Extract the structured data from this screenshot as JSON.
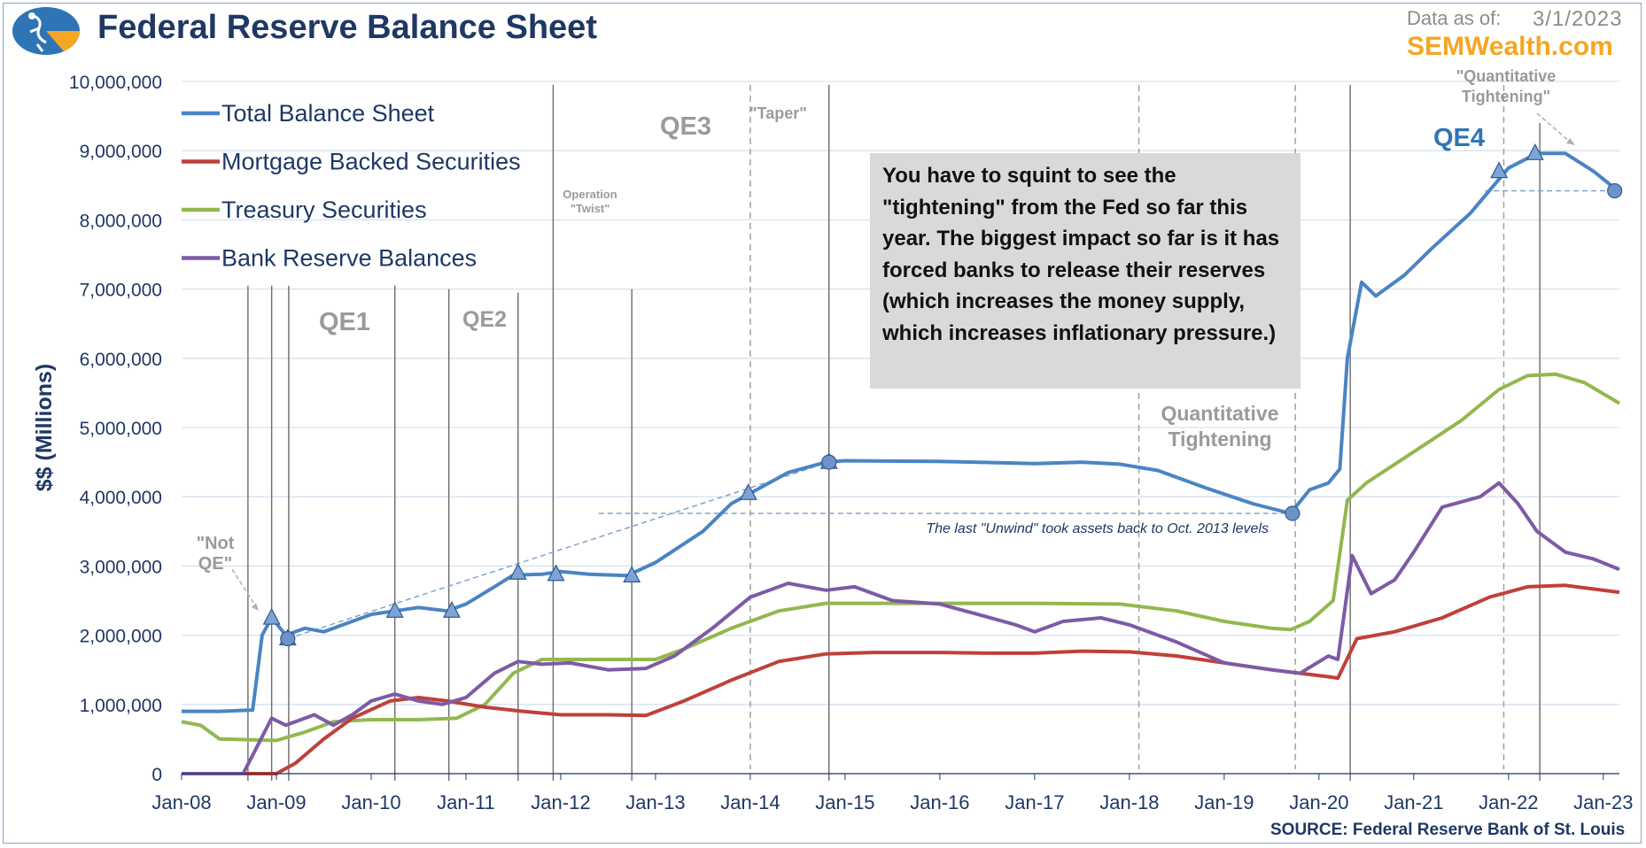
{
  "header": {
    "title": "Federal Reserve Balance Sheet",
    "as_of_label": "Data as of:",
    "as_of_date": "3/1/2023",
    "brand": "SEMWealth.com",
    "logo_icon": "sem-logo-icon"
  },
  "source": "SOURCE:  Federal Reserve Bank of St. Louis",
  "callout": "You have to squint to see the \"tightening\" from the Fed so far this year. The biggest impact so far is it has forced banks to release their reserves (which increases the money supply, which increases inflationary pressure.)",
  "colors": {
    "total": "#4a84c4",
    "mbs": "#c0403a",
    "treasury": "#92b84e",
    "reserves": "#7d5aa6",
    "axis_text": "#1f3864"
  },
  "chart_data": {
    "type": "line",
    "xlabel": "",
    "ylabel": "$$ (Millions)",
    "x_ticks": [
      "Jan-08",
      "Jan-09",
      "Jan-10",
      "Jan-11",
      "Jan-12",
      "Jan-13",
      "Jan-14",
      "Jan-15",
      "Jan-16",
      "Jan-17",
      "Jan-18",
      "Jan-19",
      "Jan-20",
      "Jan-21",
      "Jan-22",
      "Jan-23"
    ],
    "y_ticks": [
      0,
      1000000,
      2000000,
      3000000,
      4000000,
      5000000,
      6000000,
      7000000,
      8000000,
      9000000,
      10000000
    ],
    "ylim": [
      0,
      10000000
    ],
    "xlim": [
      2008.0,
      2023.17
    ],
    "grid": true,
    "legend_position": "top-left",
    "series": [
      {
        "name": "Total Balance Sheet",
        "key": "total",
        "points": [
          [
            2008.0,
            900000
          ],
          [
            2008.4,
            900000
          ],
          [
            2008.75,
            920000
          ],
          [
            2008.85,
            2000000
          ],
          [
            2008.95,
            2250000
          ],
          [
            2009.1,
            2000000
          ],
          [
            2009.3,
            2100000
          ],
          [
            2009.5,
            2050000
          ],
          [
            2009.8,
            2200000
          ],
          [
            2010.0,
            2300000
          ],
          [
            2010.25,
            2350000
          ],
          [
            2010.5,
            2400000
          ],
          [
            2010.8,
            2350000
          ],
          [
            2011.0,
            2450000
          ],
          [
            2011.3,
            2700000
          ],
          [
            2011.5,
            2870000
          ],
          [
            2011.8,
            2880000
          ],
          [
            2012.0,
            2920000
          ],
          [
            2012.3,
            2880000
          ],
          [
            2012.7,
            2860000
          ],
          [
            2013.0,
            3050000
          ],
          [
            2013.5,
            3500000
          ],
          [
            2013.8,
            3900000
          ],
          [
            2014.0,
            4050000
          ],
          [
            2014.4,
            4350000
          ],
          [
            2014.8,
            4500000
          ],
          [
            2015.0,
            4520000
          ],
          [
            2016.0,
            4510000
          ],
          [
            2017.0,
            4480000
          ],
          [
            2017.5,
            4500000
          ],
          [
            2017.9,
            4470000
          ],
          [
            2018.3,
            4380000
          ],
          [
            2018.8,
            4130000
          ],
          [
            2019.3,
            3900000
          ],
          [
            2019.7,
            3760000
          ],
          [
            2019.9,
            4100000
          ],
          [
            2020.1,
            4200000
          ],
          [
            2020.22,
            4400000
          ],
          [
            2020.3,
            6000000
          ],
          [
            2020.45,
            7100000
          ],
          [
            2020.6,
            6900000
          ],
          [
            2020.9,
            7200000
          ],
          [
            2021.2,
            7600000
          ],
          [
            2021.6,
            8100000
          ],
          [
            2022.0,
            8750000
          ],
          [
            2022.3,
            8960000
          ],
          [
            2022.6,
            8960000
          ],
          [
            2022.9,
            8700000
          ],
          [
            2023.17,
            8400000
          ]
        ]
      },
      {
        "name": "Mortgage Backed Securities",
        "key": "mbs",
        "points": [
          [
            2008.0,
            0
          ],
          [
            2009.0,
            0
          ],
          [
            2009.2,
            150000
          ],
          [
            2009.5,
            500000
          ],
          [
            2009.8,
            800000
          ],
          [
            2010.2,
            1050000
          ],
          [
            2010.5,
            1100000
          ],
          [
            2010.8,
            1050000
          ],
          [
            2011.2,
            960000
          ],
          [
            2011.6,
            900000
          ],
          [
            2012.0,
            850000
          ],
          [
            2012.5,
            850000
          ],
          [
            2012.9,
            840000
          ],
          [
            2013.3,
            1050000
          ],
          [
            2013.8,
            1350000
          ],
          [
            2014.3,
            1620000
          ],
          [
            2014.8,
            1730000
          ],
          [
            2015.3,
            1750000
          ],
          [
            2016.0,
            1750000
          ],
          [
            2016.5,
            1740000
          ],
          [
            2017.0,
            1740000
          ],
          [
            2017.5,
            1770000
          ],
          [
            2018.0,
            1760000
          ],
          [
            2018.5,
            1700000
          ],
          [
            2019.0,
            1600000
          ],
          [
            2019.5,
            1500000
          ],
          [
            2020.1,
            1400000
          ],
          [
            2020.2,
            1380000
          ],
          [
            2020.4,
            1950000
          ],
          [
            2020.8,
            2050000
          ],
          [
            2021.3,
            2250000
          ],
          [
            2021.8,
            2550000
          ],
          [
            2022.2,
            2700000
          ],
          [
            2022.6,
            2720000
          ],
          [
            2023.17,
            2620000
          ]
        ]
      },
      {
        "name": "Treasury Securities",
        "key": "treasury",
        "points": [
          [
            2008.0,
            750000
          ],
          [
            2008.2,
            700000
          ],
          [
            2008.4,
            500000
          ],
          [
            2009.0,
            480000
          ],
          [
            2009.3,
            600000
          ],
          [
            2009.6,
            750000
          ],
          [
            2010.0,
            780000
          ],
          [
            2010.5,
            780000
          ],
          [
            2010.9,
            800000
          ],
          [
            2011.2,
            1000000
          ],
          [
            2011.5,
            1450000
          ],
          [
            2011.8,
            1650000
          ],
          [
            2012.3,
            1650000
          ],
          [
            2012.8,
            1650000
          ],
          [
            2013.0,
            1650000
          ],
          [
            2013.3,
            1800000
          ],
          [
            2013.8,
            2100000
          ],
          [
            2014.3,
            2350000
          ],
          [
            2014.8,
            2460000
          ],
          [
            2015.0,
            2460000
          ],
          [
            2017.0,
            2460000
          ],
          [
            2017.9,
            2450000
          ],
          [
            2018.5,
            2350000
          ],
          [
            2019.0,
            2200000
          ],
          [
            2019.5,
            2100000
          ],
          [
            2019.7,
            2080000
          ],
          [
            2019.9,
            2200000
          ],
          [
            2020.15,
            2500000
          ],
          [
            2020.3,
            3950000
          ],
          [
            2020.5,
            4200000
          ],
          [
            2021.0,
            4650000
          ],
          [
            2021.5,
            5100000
          ],
          [
            2021.9,
            5550000
          ],
          [
            2022.2,
            5750000
          ],
          [
            2022.5,
            5770000
          ],
          [
            2022.8,
            5650000
          ],
          [
            2023.17,
            5350000
          ]
        ]
      },
      {
        "name": "Bank Reserve Balances",
        "key": "reserves",
        "points": [
          [
            2008.0,
            0
          ],
          [
            2008.65,
            0
          ],
          [
            2008.8,
            400000
          ],
          [
            2008.95,
            800000
          ],
          [
            2009.1,
            700000
          ],
          [
            2009.4,
            850000
          ],
          [
            2009.6,
            700000
          ],
          [
            2009.8,
            850000
          ],
          [
            2010.0,
            1050000
          ],
          [
            2010.25,
            1150000
          ],
          [
            2010.5,
            1050000
          ],
          [
            2010.75,
            1000000
          ],
          [
            2011.0,
            1100000
          ],
          [
            2011.3,
            1450000
          ],
          [
            2011.55,
            1620000
          ],
          [
            2011.8,
            1580000
          ],
          [
            2012.1,
            1600000
          ],
          [
            2012.5,
            1500000
          ],
          [
            2012.9,
            1520000
          ],
          [
            2013.2,
            1700000
          ],
          [
            2013.6,
            2100000
          ],
          [
            2014.0,
            2550000
          ],
          [
            2014.4,
            2750000
          ],
          [
            2014.8,
            2650000
          ],
          [
            2015.1,
            2700000
          ],
          [
            2015.5,
            2500000
          ],
          [
            2016.0,
            2450000
          ],
          [
            2016.4,
            2300000
          ],
          [
            2016.8,
            2150000
          ],
          [
            2017.0,
            2050000
          ],
          [
            2017.3,
            2200000
          ],
          [
            2017.7,
            2250000
          ],
          [
            2018.0,
            2150000
          ],
          [
            2018.5,
            1900000
          ],
          [
            2019.0,
            1600000
          ],
          [
            2019.5,
            1500000
          ],
          [
            2019.8,
            1450000
          ],
          [
            2020.1,
            1700000
          ],
          [
            2020.2,
            1650000
          ],
          [
            2020.35,
            3150000
          ],
          [
            2020.55,
            2600000
          ],
          [
            2020.8,
            2800000
          ],
          [
            2021.0,
            3200000
          ],
          [
            2021.3,
            3850000
          ],
          [
            2021.7,
            4000000
          ],
          [
            2021.9,
            4200000
          ],
          [
            2022.1,
            3900000
          ],
          [
            2022.3,
            3500000
          ],
          [
            2022.6,
            3200000
          ],
          [
            2022.9,
            3100000
          ],
          [
            2023.17,
            2950000
          ]
        ]
      }
    ],
    "markers": [
      [
        2008.95,
        2250000
      ],
      [
        2009.12,
        1950000
      ],
      [
        2010.25,
        2350000
      ],
      [
        2010.85,
        2350000
      ],
      [
        2011.55,
        2900000
      ],
      [
        2011.95,
        2880000
      ],
      [
        2012.75,
        2860000
      ],
      [
        2013.98,
        4050000
      ],
      [
        2014.83,
        4500000
      ],
      [
        2021.9,
        8700000
      ],
      [
        2022.28,
        8960000
      ]
    ],
    "circles": [
      [
        2009.12,
        1950000
      ],
      [
        2014.83,
        4500000
      ],
      [
        2019.72,
        3760000
      ],
      [
        2023.12,
        8420000
      ]
    ],
    "event_lines_solid": [
      [
        2008.7,
        7050000
      ],
      [
        2008.95,
        7050000
      ],
      [
        2009.13,
        7050000
      ],
      [
        2010.25,
        7050000
      ],
      [
        2010.82,
        7000000
      ],
      [
        2011.55,
        6950000
      ],
      [
        2011.92,
        9950000
      ],
      [
        2012.75,
        7000000
      ],
      [
        2014.83,
        9950000
      ],
      [
        2020.33,
        9950000
      ],
      [
        2022.33,
        9400000
      ]
    ],
    "event_lines_dashed": [
      2014.0,
      2018.1,
      2019.75,
      2021.95
    ],
    "annotations": {
      "qe1": "QE1",
      "qe2": "QE2",
      "qe3": "QE3",
      "qe4": "QE4",
      "not_qe": [
        "\"Not",
        "QE\""
      ],
      "twist": [
        "Operation",
        "\"Twist\""
      ],
      "taper": "\"Taper\"",
      "qt_2018": [
        "Quantitative",
        "Tightening"
      ],
      "qt_2022": [
        "\"Quantitative",
        "Tightening\""
      ],
      "unwind": "The last \"Unwind\" took assets back to Oct. 2013 levels"
    }
  }
}
